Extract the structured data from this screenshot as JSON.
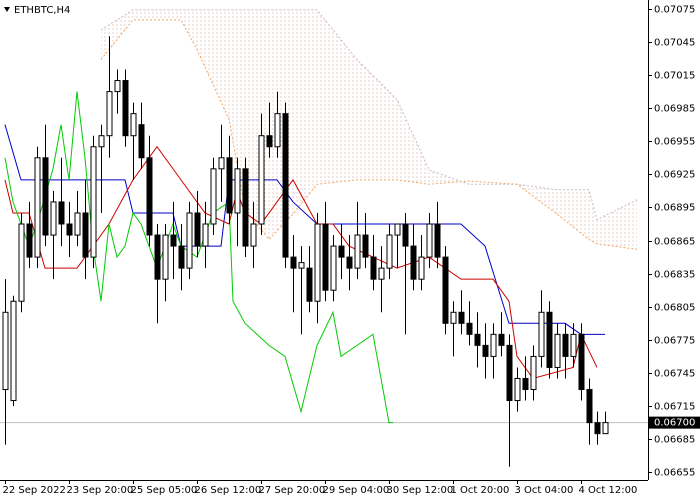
{
  "chart_data": {
    "type": "candlestick",
    "title": "ETHBTC,H4",
    "xlim": [
      -0.625,
      80.375
    ],
    "ylim": [
      0.06648,
      0.07083
    ],
    "yticks": [
      0.06655,
      0.06685,
      0.06715,
      0.06745,
      0.06775,
      0.06805,
      0.06835,
      0.06865,
      0.06895,
      0.06925,
      0.06955,
      0.06985,
      0.07015,
      0.07045,
      0.07075
    ],
    "xticks": [
      {
        "value": 0,
        "label": "22 Sep 2022"
      },
      {
        "value": 8,
        "label": "23 Sep 20:00"
      },
      {
        "value": 16,
        "label": "25 Sep 05:00"
      },
      {
        "value": 24,
        "label": "26 Sep 12:00"
      },
      {
        "value": 32,
        "label": "27 Sep 20:00"
      },
      {
        "value": 40,
        "label": "29 Sep 04:00"
      },
      {
        "value": 48,
        "label": "30 Sep 12:00"
      },
      {
        "value": 56,
        "label": "1 Oct 20:00"
      },
      {
        "value": 64,
        "label": "3 Oct 04:00"
      },
      {
        "value": 72,
        "label": "4 Oct 12:00"
      }
    ],
    "current_price": {
      "value": 0.067,
      "label": "0.06700"
    },
    "ohlc": [
      [
        0.0673,
        0.0683,
        0.0668,
        0.068
      ],
      [
        0.0672,
        0.06815,
        0.06715,
        0.0681
      ],
      [
        0.0681,
        0.0689,
        0.068,
        0.0688
      ],
      [
        0.0688,
        0.069,
        0.0684,
        0.0685
      ],
      [
        0.0685,
        0.0695,
        0.0684,
        0.0694
      ],
      [
        0.0694,
        0.0697,
        0.0686,
        0.0687
      ],
      [
        0.0687,
        0.0691,
        0.0683,
        0.069
      ],
      [
        0.069,
        0.0694,
        0.0686,
        0.0688
      ],
      [
        0.0688,
        0.069,
        0.0685,
        0.0687
      ],
      [
        0.0687,
        0.0691,
        0.0686,
        0.0689
      ],
      [
        0.0689,
        0.0692,
        0.0683,
        0.0685
      ],
      [
        0.0685,
        0.0696,
        0.0684,
        0.0695
      ],
      [
        0.0695,
        0.0697,
        0.0689,
        0.0696
      ],
      [
        0.0696,
        0.0705,
        0.0694,
        0.07
      ],
      [
        0.07,
        0.0702,
        0.0698,
        0.0701
      ],
      [
        0.0701,
        0.0702,
        0.0695,
        0.0696
      ],
      [
        0.0696,
        0.0699,
        0.0692,
        0.0698
      ],
      [
        0.0697,
        0.0699,
        0.0693,
        0.0694
      ],
      [
        0.0694,
        0.0696,
        0.0686,
        0.0687
      ],
      [
        0.0687,
        0.0688,
        0.0679,
        0.0683
      ],
      [
        0.0683,
        0.0688,
        0.0681,
        0.0687
      ],
      [
        0.0687,
        0.069,
        0.0683,
        0.0686
      ],
      [
        0.0686,
        0.0688,
        0.0682,
        0.0684
      ],
      [
        0.0684,
        0.069,
        0.0683,
        0.0689
      ],
      [
        0.0689,
        0.0691,
        0.0685,
        0.0686
      ],
      [
        0.0686,
        0.069,
        0.0684,
        0.0688
      ],
      [
        0.0688,
        0.0694,
        0.0687,
        0.0693
      ],
      [
        0.0693,
        0.0697,
        0.069,
        0.0694
      ],
      [
        0.0694,
        0.0696,
        0.0688,
        0.0689
      ],
      [
        0.0689,
        0.0694,
        0.0686,
        0.0693
      ],
      [
        0.0693,
        0.0694,
        0.0685,
        0.0686
      ],
      [
        0.0686,
        0.069,
        0.0684,
        0.0688
      ],
      [
        0.0688,
        0.0698,
        0.0687,
        0.0696
      ],
      [
        0.0696,
        0.0699,
        0.0694,
        0.0695
      ],
      [
        0.0695,
        0.07,
        0.0694,
        0.0698
      ],
      [
        0.0698,
        0.0699,
        0.0684,
        0.0685
      ],
      [
        0.0685,
        0.0687,
        0.068,
        0.0684
      ],
      [
        0.0684,
        0.0686,
        0.0678,
        0.06845
      ],
      [
        0.0684,
        0.0686,
        0.068,
        0.0681
      ],
      [
        0.0681,
        0.0689,
        0.0679,
        0.0688
      ],
      [
        0.0688,
        0.069,
        0.0681,
        0.0682
      ],
      [
        0.0682,
        0.0687,
        0.0681,
        0.0686
      ],
      [
        0.0686,
        0.0688,
        0.0683,
        0.0685
      ],
      [
        0.0685,
        0.0687,
        0.0682,
        0.0684
      ],
      [
        0.0684,
        0.069,
        0.0683,
        0.0687
      ],
      [
        0.0687,
        0.0689,
        0.0684,
        0.0685
      ],
      [
        0.0685,
        0.0687,
        0.0682,
        0.0683
      ],
      [
        0.0683,
        0.0686,
        0.068,
        0.0684
      ],
      [
        0.0684,
        0.0688,
        0.0683,
        0.0687
      ],
      [
        0.0687,
        0.0688,
        0.0684,
        0.0688
      ],
      [
        0.0688,
        0.0689,
        0.0678,
        0.0686
      ],
      [
        0.0686,
        0.0688,
        0.0682,
        0.0683
      ],
      [
        0.0683,
        0.0687,
        0.0682,
        0.0685
      ],
      [
        0.0685,
        0.0689,
        0.0684,
        0.0688
      ],
      [
        0.0688,
        0.069,
        0.0684,
        0.0685
      ],
      [
        0.0685,
        0.0686,
        0.0678,
        0.0679
      ],
      [
        0.0679,
        0.0681,
        0.0676,
        0.068
      ],
      [
        0.068,
        0.0682,
        0.0678,
        0.0679
      ],
      [
        0.0679,
        0.0681,
        0.0677,
        0.0678
      ],
      [
        0.0678,
        0.068,
        0.0675,
        0.0677
      ],
      [
        0.0677,
        0.0679,
        0.0674,
        0.0676
      ],
      [
        0.0676,
        0.0679,
        0.0674,
        0.0678
      ],
      [
        0.0678,
        0.068,
        0.0676,
        0.0677
      ],
      [
        0.0677,
        0.0678,
        0.0666,
        0.0672
      ],
      [
        0.0672,
        0.0675,
        0.0671,
        0.0674
      ],
      [
        0.0674,
        0.0676,
        0.0672,
        0.0673
      ],
      [
        0.0673,
        0.0677,
        0.0672,
        0.0676
      ],
      [
        0.0676,
        0.0682,
        0.0675,
        0.068
      ],
      [
        0.068,
        0.0681,
        0.0674,
        0.0675
      ],
      [
        0.0675,
        0.0679,
        0.0674,
        0.0678
      ],
      [
        0.0678,
        0.0679,
        0.0674,
        0.0676
      ],
      [
        0.0676,
        0.0679,
        0.0675,
        0.0678
      ],
      [
        0.0678,
        0.0679,
        0.0672,
        0.0673
      ],
      [
        0.0673,
        0.0674,
        0.0668,
        0.067
      ],
      [
        0.067,
        0.0671,
        0.0668,
        0.0669
      ],
      [
        0.0669,
        0.0671,
        0.0669,
        0.067
      ]
    ],
    "lines": [
      {
        "color": "#0000cc",
        "x": [
          0,
          2,
          15,
          16,
          21,
          22,
          27,
          28,
          34,
          36,
          39,
          57,
          60,
          63,
          70,
          72,
          75
        ],
        "values": [
          0.0697,
          0.0692,
          0.0692,
          0.0689,
          0.0689,
          0.0686,
          0.0686,
          0.0692,
          0.0692,
          0.069,
          0.0688,
          0.0688,
          0.0686,
          0.0679,
          0.0679,
          0.0678,
          0.0678
        ]
      },
      {
        "color": "#cc0000",
        "x": [
          0,
          1,
          3,
          5,
          7,
          9,
          13,
          16,
          18,
          19,
          22,
          25,
          28,
          29,
          30,
          32,
          34,
          36,
          39,
          41,
          43,
          46,
          49,
          53,
          57,
          61,
          63,
          64,
          66,
          71,
          72,
          74
        ],
        "values": [
          0.0692,
          0.0689,
          0.0689,
          0.0684,
          0.0684,
          0.0684,
          0.0688,
          0.0692,
          0.0694,
          0.0695,
          0.0692,
          0.0689,
          0.0688,
          0.0691,
          0.0689,
          0.0688,
          0.069,
          0.0692,
          0.0688,
          0.0688,
          0.0686,
          0.0685,
          0.0684,
          0.0685,
          0.0683,
          0.0683,
          0.0681,
          0.0676,
          0.0674,
          0.0675,
          0.0678,
          0.0675
        ]
      },
      {
        "color": "#00cc00",
        "x": [
          0,
          1,
          3,
          4,
          6,
          7,
          8,
          9,
          10,
          11,
          12,
          13,
          14,
          15,
          16,
          17,
          19,
          20,
          21,
          22,
          24,
          26,
          28,
          28.5,
          30,
          33,
          35,
          37,
          39,
          41,
          42,
          44,
          46,
          48,
          48.5
        ],
        "values": [
          0.0694,
          0.069,
          0.0686,
          0.0688,
          0.0693,
          0.0697,
          0.0692,
          0.07,
          0.0694,
          0.0686,
          0.0681,
          0.0688,
          0.0685,
          0.0686,
          0.0689,
          0.0688,
          0.0684,
          0.0686,
          0.0688,
          0.0686,
          0.0685,
          0.0689,
          0.069,
          0.0681,
          0.0679,
          0.0677,
          0.0676,
          0.0671,
          0.0677,
          0.068,
          0.0676,
          0.0677,
          0.0678,
          0.067,
          0.067
        ]
      }
    ],
    "cloud": {
      "color_a": "#c8b8c8",
      "color_b": "#f4a460",
      "x": [
        12,
        16,
        22,
        24,
        28,
        30,
        33,
        36,
        39,
        44,
        49,
        53,
        58,
        64,
        69,
        73,
        74,
        79
      ],
      "span_a": [
        0.07056,
        0.07074,
        0.07074,
        0.07074,
        0.07074,
        0.07074,
        0.07074,
        0.07074,
        0.07074,
        0.07029,
        0.06993,
        0.06929,
        0.06916,
        0.06916,
        0.06911,
        0.06911,
        0.06884,
        0.06902
      ],
      "span_b": [
        0.07029,
        0.07065,
        0.07065,
        0.07038,
        0.06975,
        0.06893,
        0.06866,
        0.06889,
        0.06916,
        0.0692,
        0.0692,
        0.06916,
        0.06919,
        0.06916,
        0.06889,
        0.06866,
        0.06862,
        0.06857
      ]
    }
  }
}
